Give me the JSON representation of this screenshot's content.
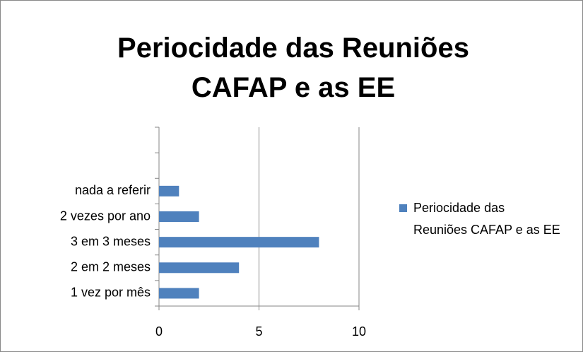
{
  "chart_data": {
    "type": "bar",
    "orientation": "horizontal",
    "title": "Periocidade das Reuniões CAFAP e as EE",
    "categories": [
      "1 vez por mês",
      "2 em 2 meses",
      "3 em 3 meses",
      "2 vezes por ano",
      "nada a referir",
      null,
      null
    ],
    "series": [
      {
        "name": "Periocidade das Reuniões CAFAP e as EE",
        "color": "#4f81bd",
        "values": [
          2,
          4,
          8,
          2,
          1,
          null,
          null
        ]
      }
    ],
    "xlim": [
      0,
      10
    ],
    "xticks": [
      0,
      5,
      10
    ],
    "grid": true,
    "legend": "right"
  }
}
